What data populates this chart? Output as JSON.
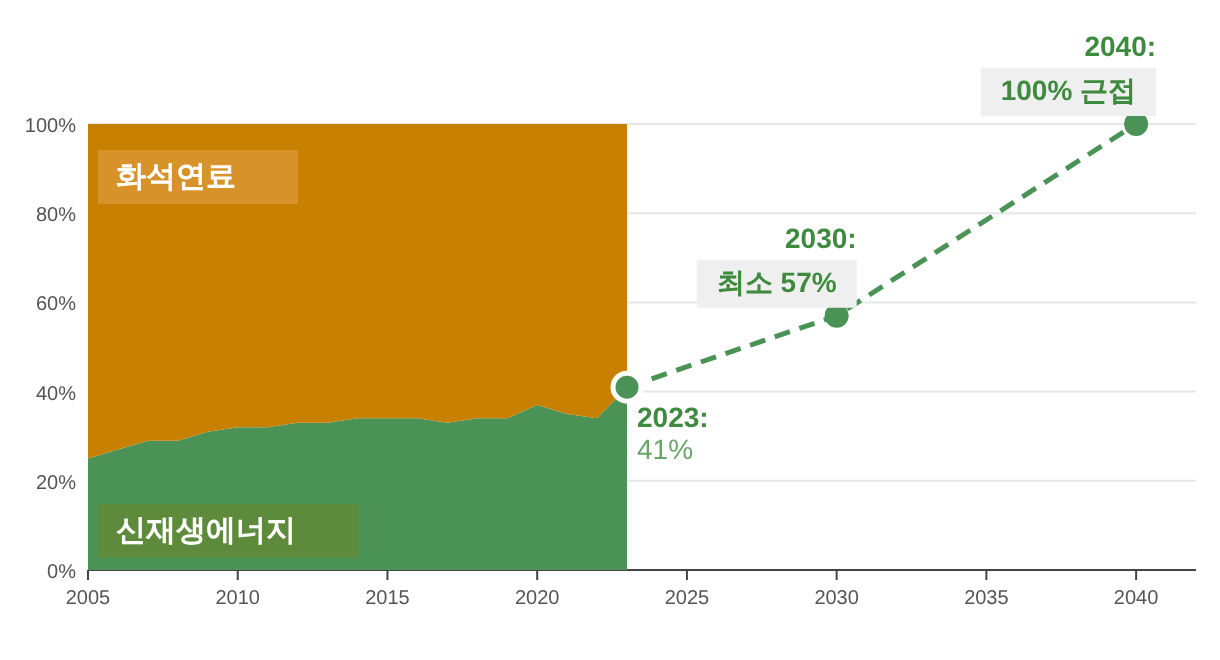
{
  "chart_data": {
    "type": "area",
    "stacked": true,
    "grid": "y",
    "x": [
      2005,
      2006,
      2007,
      2008,
      2009,
      2010,
      2011,
      2012,
      2013,
      2014,
      2015,
      2016,
      2017,
      2018,
      2019,
      2020,
      2021,
      2022,
      2023
    ],
    "series": [
      {
        "name": "신재생에너지",
        "color": "#4b9257",
        "values": [
          25,
          27,
          29,
          29,
          31,
          32,
          32,
          33,
          33,
          34,
          34,
          34,
          33,
          34,
          34,
          37,
          35,
          34,
          41
        ]
      },
      {
        "name": "화석연료",
        "color": "#c88000",
        "values": [
          75,
          73,
          71,
          71,
          69,
          68,
          68,
          67,
          67,
          66,
          66,
          66,
          67,
          66,
          66,
          63,
          65,
          66,
          59
        ]
      },
      {
        "type": "line",
        "color": "#4b9257",
        "line_style": "dashed",
        "marker": "circle",
        "x": [
          2023,
          2030,
          2040
        ],
        "values": [
          41,
          57,
          100
        ]
      }
    ],
    "xlim": [
      2005,
      2042
    ],
    "xticks": [
      2005,
      2010,
      2015,
      2020,
      2025,
      2030,
      2035,
      2040
    ],
    "ylim": [
      0,
      100
    ],
    "yticks": [
      {
        "value": 0,
        "label": "0%"
      },
      {
        "value": 20,
        "label": "20%"
      },
      {
        "value": 40,
        "label": "40%"
      },
      {
        "value": 60,
        "label": "60%"
      },
      {
        "value": 80,
        "label": "80%"
      },
      {
        "value": 100,
        "label": "100%"
      }
    ],
    "annotations": [
      {
        "text": "2023:",
        "x": 2023,
        "y": 41
      },
      {
        "text": "41%",
        "x": 2023,
        "y": 41
      },
      {
        "text": "2030:",
        "x": 2030,
        "y": 57
      },
      {
        "text": "최소 57%",
        "x": 2030,
        "y": 57
      },
      {
        "text": "2040:",
        "x": 2040,
        "y": 100
      },
      {
        "text": "100% 근접",
        "x": 2040,
        "y": 100
      }
    ]
  }
}
